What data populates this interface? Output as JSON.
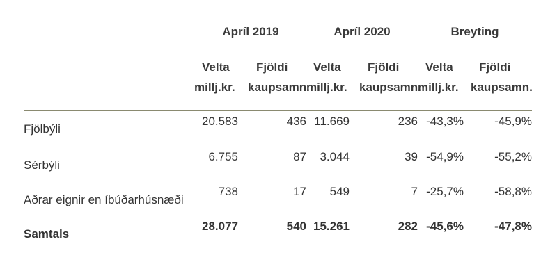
{
  "groups": [
    "Apríl 2019",
    "Apríl 2020",
    "Breyting"
  ],
  "subheaders": [
    {
      "line1": "Velta",
      "line2": "millj.kr."
    },
    {
      "line1": "Fjöldi",
      "line2": "kaupsamn."
    },
    {
      "line1": "Velta",
      "line2": "millj.kr."
    },
    {
      "line1": "Fjöldi",
      "line2": "kaupsamn."
    },
    {
      "line1": "Velta",
      "line2": "millj.kr."
    },
    {
      "line1": "Fjöldi",
      "line2": "kaupsamn."
    }
  ],
  "rows": [
    {
      "label": "Fjölbýli",
      "values": [
        "20.583",
        "436",
        "11.669",
        "236",
        "-43,3%",
        "-45,9%"
      ]
    },
    {
      "label": "Sérbýli",
      "values": [
        "6.755",
        "87",
        "3.044",
        "39",
        "-54,9%",
        "-55,2%"
      ]
    },
    {
      "label": "Aðrar eignir en íbúðarhúsnæði",
      "values": [
        "738",
        "17",
        "549",
        "7",
        "-25,7%",
        "-58,8%"
      ]
    },
    {
      "label": "Samtals",
      "values": [
        "28.077",
        "540",
        "15.261",
        "282",
        "-45,6%",
        "-47,8%"
      ]
    }
  ],
  "colors": {
    "rule": "#8a8a70",
    "text": "#333333"
  }
}
